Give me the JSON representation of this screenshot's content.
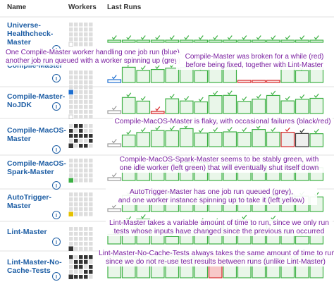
{
  "header": {
    "name": "Name",
    "workers": "Workers",
    "last_runs": "Last Runs"
  },
  "rows": [
    {
      "name": [
        "Universe-",
        "Healthcheck-",
        "Master"
      ]
    },
    {
      "name": [
        "Compile-Master"
      ]
    },
    {
      "name": [
        "Compile-Master-",
        "NoJDK"
      ]
    },
    {
      "name": [
        "Compile-MacOS-",
        "Master"
      ]
    },
    {
      "name": [
        "Compile-MacOS-",
        "Spark-Master"
      ]
    },
    {
      "name": [
        "AutoTrigger-",
        "Master"
      ]
    },
    {
      "name": [
        "Lint-Master"
      ]
    },
    {
      "name": [
        "Lint-Master-No-",
        "Cache-Tests"
      ]
    }
  ],
  "annotations": [
    {
      "lines": [
        "One Compile-Master worker handling one job run (blue),",
        "another job run queued with a worker spinning up (grey)"
      ]
    },
    {
      "lines": [
        "Compile-Master was broken for a while (red)",
        "before being fixed, together with Lint-Master"
      ]
    },
    {
      "lines": [
        "Compile-MacOS-Master is flaky, with occasional failures (black/red)"
      ]
    },
    {
      "lines": [
        "Compile-MacOS-Spark-Master seems to be stably green, with",
        "one idle worker (left green) that will eventually shut itself down"
      ]
    },
    {
      "lines": [
        "AutoTrigger-Master has one job run queued (grey),",
        "and one worker instance spinning up to take it (left yellow)"
      ]
    },
    {
      "lines": [
        "Lint-Master takes a variable amount of time to run, since we only run",
        "tests whose inputs have changed since the previous run occurred"
      ]
    },
    {
      "lines": [
        "Lint-Master-No-Cache-Tests always takes the same amount of time to run,",
        "since we do not re-use test results between runs (unlike Lint-Master)"
      ]
    }
  ]
}
